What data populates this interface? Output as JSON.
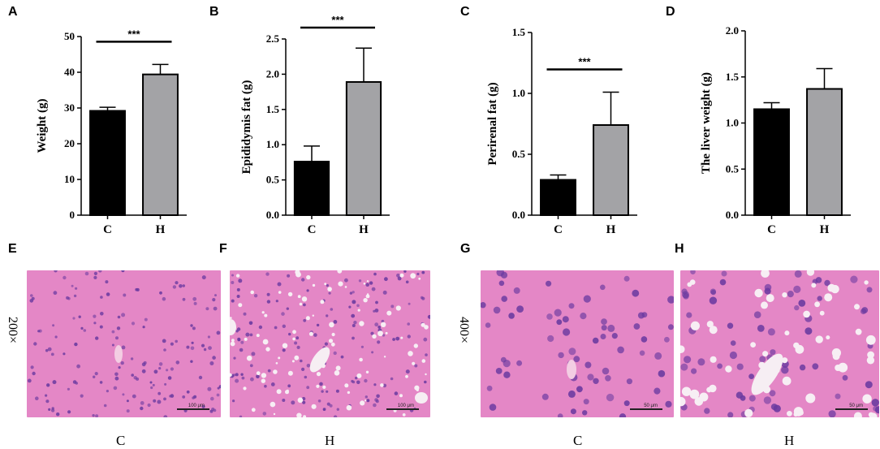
{
  "panels": {
    "A": "A",
    "B": "B",
    "C": "C",
    "D": "D",
    "E": "E",
    "F": "F",
    "G": "G",
    "H": "H"
  },
  "colors": {
    "control": "#000000",
    "high": "#a3a3a6",
    "stain_bg": "#e487c6",
    "nuclei": "#6a3aa0"
  },
  "chart_data": [
    {
      "id": "A",
      "type": "bar",
      "categories": [
        "C",
        "H"
      ],
      "values": [
        29.2,
        39.4
      ],
      "errors": [
        1.0,
        2.8
      ],
      "ylabel": "Weight (g)",
      "ylim": [
        0,
        50
      ],
      "yticks": [
        0,
        10,
        20,
        30,
        40,
        50
      ],
      "ytick_labels": [
        "0",
        "10",
        "20",
        "30",
        "40",
        "50"
      ],
      "significance": "***",
      "grid": false
    },
    {
      "id": "B",
      "type": "bar",
      "categories": [
        "C",
        "H"
      ],
      "values": [
        0.76,
        1.89
      ],
      "errors": [
        0.22,
        0.48
      ],
      "ylabel": "Epididymis fat (g)",
      "ylim": [
        0,
        2.5
      ],
      "yticks": [
        0,
        0.5,
        1.0,
        1.5,
        2.0,
        2.5
      ],
      "ytick_labels": [
        "0.0",
        "0.5",
        "1.0",
        "1.5",
        "2.0",
        "2.5"
      ],
      "significance": "***",
      "grid": false
    },
    {
      "id": "C",
      "type": "bar",
      "categories": [
        "C",
        "H"
      ],
      "values": [
        0.29,
        0.74
      ],
      "errors": [
        0.04,
        0.27
      ],
      "ylabel": "Perirenal fat (g)",
      "ylim": [
        0,
        1.5
      ],
      "yticks": [
        0,
        0.5,
        1.0,
        1.5
      ],
      "ytick_labels": [
        "0.0",
        "0.5",
        "1.0",
        "1.5"
      ],
      "significance": "***",
      "grid": false
    },
    {
      "id": "D",
      "type": "bar",
      "categories": [
        "C",
        "H"
      ],
      "values": [
        1.15,
        1.37
      ],
      "errors": [
        0.07,
        0.22
      ],
      "ylabel": "The liver weight (g)",
      "ylim": [
        0,
        2.0
      ],
      "yticks": [
        0,
        0.5,
        1.0,
        1.5,
        2.0
      ],
      "ytick_labels": [
        "0.0",
        "0.5",
        "1.0",
        "1.5",
        "2.0"
      ],
      "significance": "",
      "grid": false
    }
  ],
  "micrographs": {
    "mag_200": "200×",
    "mag_400": "400×",
    "E_label": "C",
    "F_label": "H",
    "G_label": "C",
    "H_label": "H",
    "scale_200": "100 μm",
    "scale_400": "50 μm"
  }
}
